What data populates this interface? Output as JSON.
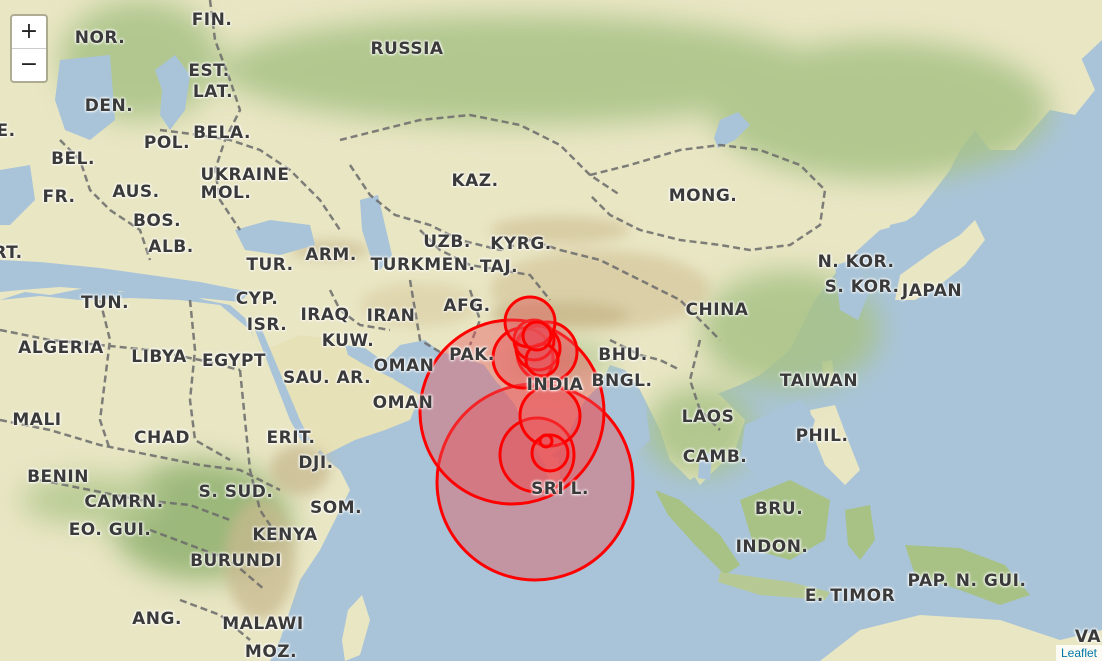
{
  "zoom": {
    "in_label": "+",
    "out_label": "−"
  },
  "attribution": {
    "label": "Leaflet"
  },
  "colors": {
    "ocean": "#a9c4d8",
    "land": "#e9e6c4",
    "forest": "#a8c286",
    "mountain": "#c9b98f",
    "border": "#6b6b6b",
    "circle_stroke": "#ff0000",
    "circle_fill": "#e8545a"
  },
  "labels": [
    {
      "id": "fin",
      "text": "FIN."
    },
    {
      "id": "nor",
      "text": "NOR."
    },
    {
      "id": "russia",
      "text": "RUSSIA"
    },
    {
      "id": "est",
      "text": "EST."
    },
    {
      "id": "lat",
      "text": "LAT."
    },
    {
      "id": "den",
      "text": "DEN."
    },
    {
      "id": "bela",
      "text": "BELA."
    },
    {
      "id": "pol",
      "text": "POL."
    },
    {
      "id": "e_edge",
      "text": "E."
    },
    {
      "id": "bel",
      "text": "BEL."
    },
    {
      "id": "ukraine",
      "text": "UKRAINE"
    },
    {
      "id": "mol",
      "text": "MOL."
    },
    {
      "id": "fr",
      "text": "FR."
    },
    {
      "id": "aus",
      "text": "AUS."
    },
    {
      "id": "kaz",
      "text": "KAZ."
    },
    {
      "id": "mong",
      "text": "MONG."
    },
    {
      "id": "bos",
      "text": "BOS."
    },
    {
      "id": "alb",
      "text": "ALB."
    },
    {
      "id": "rt",
      "text": "RT."
    },
    {
      "id": "uzb",
      "text": "UZB."
    },
    {
      "id": "kyrg",
      "text": "KYRG."
    },
    {
      "id": "arm",
      "text": "ARM."
    },
    {
      "id": "tur",
      "text": "TUR."
    },
    {
      "id": "turkmen",
      "text": "TURKMEN."
    },
    {
      "id": "taj",
      "text": "TAJ."
    },
    {
      "id": "nkor",
      "text": "N. KOR."
    },
    {
      "id": "skor",
      "text": "S. KOR."
    },
    {
      "id": "japan",
      "text": "JAPAN"
    },
    {
      "id": "tun",
      "text": "TUN."
    },
    {
      "id": "cyp",
      "text": "CYP."
    },
    {
      "id": "afg",
      "text": "AFG."
    },
    {
      "id": "china",
      "text": "CHINA"
    },
    {
      "id": "isr",
      "text": "ISR."
    },
    {
      "id": "iraq",
      "text": "IRAQ"
    },
    {
      "id": "iran",
      "text": "IRAN"
    },
    {
      "id": "algeria",
      "text": "ALGERIA"
    },
    {
      "id": "libya",
      "text": "LIBYA"
    },
    {
      "id": "kuw",
      "text": "KUW."
    },
    {
      "id": "egypt",
      "text": "EGYPT"
    },
    {
      "id": "pak",
      "text": "PAK."
    },
    {
      "id": "bhu",
      "text": "BHU."
    },
    {
      "id": "oman1",
      "text": "OMAN"
    },
    {
      "id": "sauar",
      "text": "SAU. AR."
    },
    {
      "id": "india",
      "text": "INDIA"
    },
    {
      "id": "bngl",
      "text": "BNGL."
    },
    {
      "id": "taiwan",
      "text": "TAIWAN"
    },
    {
      "id": "oman2",
      "text": "OMAN"
    },
    {
      "id": "laos",
      "text": "LAOS"
    },
    {
      "id": "mali",
      "text": "MALI"
    },
    {
      "id": "chad",
      "text": "CHAD"
    },
    {
      "id": "erit",
      "text": "ERIT."
    },
    {
      "id": "phil",
      "text": "PHIL."
    },
    {
      "id": "dji",
      "text": "DJI."
    },
    {
      "id": "camb",
      "text": "CAMB."
    },
    {
      "id": "benin",
      "text": "BENIN"
    },
    {
      "id": "ssud",
      "text": "S. SUD."
    },
    {
      "id": "sril",
      "text": "SRI L."
    },
    {
      "id": "camrn",
      "text": "CAMRN."
    },
    {
      "id": "som",
      "text": "SOM."
    },
    {
      "id": "bru",
      "text": "BRU."
    },
    {
      "id": "eogui",
      "text": "EO. GUI."
    },
    {
      "id": "kenya",
      "text": "KENYA"
    },
    {
      "id": "indon",
      "text": "INDON."
    },
    {
      "id": "burundi",
      "text": "BURUNDI"
    },
    {
      "id": "papngui",
      "text": "PAP. N. GUI."
    },
    {
      "id": "etimor",
      "text": "E. TIMOR"
    },
    {
      "id": "ang",
      "text": "ANG."
    },
    {
      "id": "malawi",
      "text": "MALAWI"
    },
    {
      "id": "va",
      "text": "VA"
    },
    {
      "id": "moz",
      "text": "MOZ."
    }
  ]
}
